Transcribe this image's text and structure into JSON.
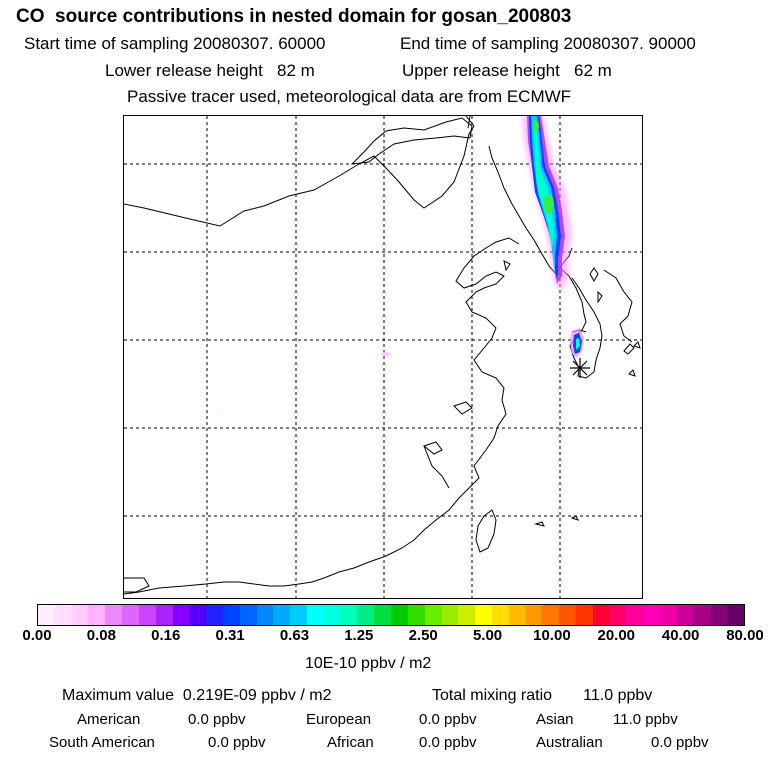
{
  "header": {
    "title": "CO  source contributions in nested domain for gosan_200803",
    "start_time": "Start time of sampling 20080307. 60000",
    "end_time": "End time of sampling 20080307. 90000",
    "lower_height": "Lower release height   82 m",
    "upper_height": "Upper release height   62 m",
    "tracer_note": "Passive tracer used, meteorological data are from ECMWF"
  },
  "map": {
    "region": "East Asia (China, Korea, Japan coastline)",
    "receptor": "gosan",
    "plume_colors": [
      "#ff66ff",
      "#cc33ff",
      "#0000ff",
      "#00ccff",
      "#00ffcc",
      "#00cc44",
      "#33ff33"
    ]
  },
  "colorbar": {
    "colors": [
      "#ffeeff",
      "#ffddff",
      "#ffccff",
      "#ffb3ff",
      "#ee88ff",
      "#dd66ff",
      "#cc44ff",
      "#aa22ff",
      "#8800ff",
      "#5500ff",
      "#2222ff",
      "#0044ff",
      "#0066ff",
      "#0088ff",
      "#00aaff",
      "#00ccff",
      "#00ffff",
      "#00ffdd",
      "#00ffbb",
      "#00ee88",
      "#00dd44",
      "#00cc00",
      "#33dd00",
      "#66ee00",
      "#99ee00",
      "#ccee00",
      "#ffff00",
      "#ffdd00",
      "#ffbb00",
      "#ff9900",
      "#ff7700",
      "#ff5500",
      "#ff3300",
      "#ff0033",
      "#ff0066",
      "#ff0099",
      "#ff00bb",
      "#ee00aa",
      "#cc0099",
      "#aa0088",
      "#880077",
      "#660066"
    ],
    "tick_labels": [
      "0.00",
      "0.08",
      "0.16",
      "0.31",
      "0.63",
      "1.25",
      "2.50",
      "5.00",
      "10.00",
      "20.00",
      "40.00",
      "80.00"
    ],
    "unit_label": "10E-10 ppbv / m2"
  },
  "stats": {
    "maximum": "Maximum value  0.219E-09 ppbv / m2",
    "total": "Total mixing ratio       11.0 ppbv",
    "american_label": "American",
    "american_value": "0.0 ppbv",
    "european_label": "European",
    "european_value": "0.0 ppbv",
    "asian_label": "Asian",
    "asian_value": "11.0 ppbv",
    "south_american_label": "South American",
    "south_american_value": "0.0 ppbv",
    "african_label": "African",
    "african_value": "0.0 ppbv",
    "australian_label": "Australian",
    "australian_value": "0.0 ppbv"
  }
}
